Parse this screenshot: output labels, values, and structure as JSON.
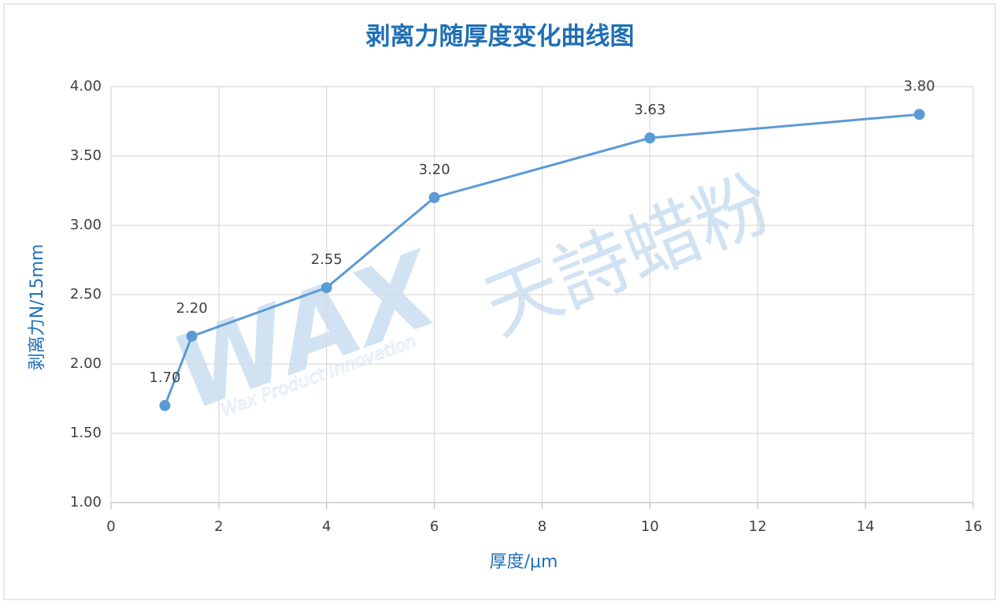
{
  "chart_data": {
    "type": "line",
    "title": "剥离力随厚度变化曲线图",
    "x_label": "厚度/μm",
    "y_label": "剥离力N/15mm",
    "watermark": {
      "logo": "WAX",
      "slogan": "Wax Product Innovation",
      "brand": "天詩蜡粉"
    },
    "x": [
      1,
      1.5,
      4,
      6,
      10,
      15
    ],
    "series": [
      {
        "name": "剥离力",
        "color": "#5b9bd5",
        "values": [
          1.7,
          2.2,
          2.55,
          3.2,
          3.63,
          3.8
        ],
        "value_labels": [
          "1.70",
          "2.20",
          "2.55",
          "3.20",
          "3.63",
          "3.80"
        ]
      }
    ],
    "xlim": [
      0,
      16
    ],
    "xticks": [
      0,
      2,
      4,
      6,
      8,
      10,
      12,
      14,
      16
    ],
    "ylim": [
      1,
      4
    ],
    "yticks": [
      {
        "value": 1,
        "label": "1.00"
      },
      {
        "value": 1.5,
        "label": "1.50"
      },
      {
        "value": 2,
        "label": "2.00"
      },
      {
        "value": 2.5,
        "label": "2.50"
      },
      {
        "value": 3,
        "label": "3.00"
      },
      {
        "value": 3.5,
        "label": "3.50"
      },
      {
        "value": 4,
        "label": "4.00"
      }
    ],
    "grid": true
  }
}
